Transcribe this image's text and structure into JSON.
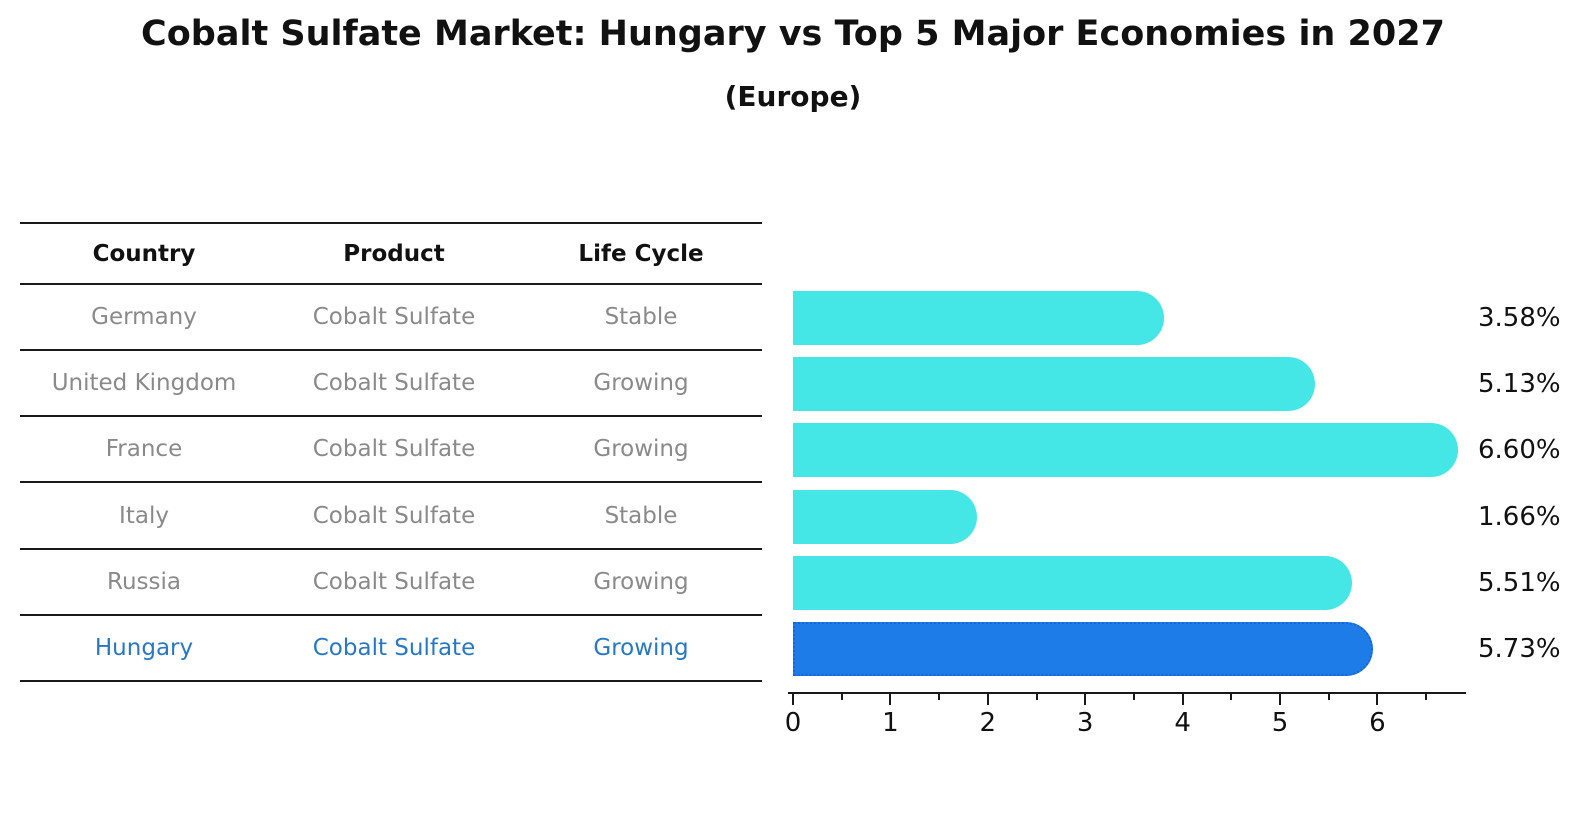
{
  "title": "Cobalt Sulfate Market: Hungary vs Top 5 Major Economies in 2027",
  "subtitle": "(Europe)",
  "table": {
    "headers": [
      "Country",
      "Product",
      "Life Cycle"
    ],
    "rows": [
      {
        "country": "Germany",
        "product": "Cobalt Sulfate",
        "life_cycle": "Stable",
        "highlight": false
      },
      {
        "country": "United Kingdom",
        "product": "Cobalt Sulfate",
        "life_cycle": "Growing",
        "highlight": false
      },
      {
        "country": "France",
        "product": "Cobalt Sulfate",
        "life_cycle": "Growing",
        "highlight": false
      },
      {
        "country": "Italy",
        "product": "Cobalt Sulfate",
        "life_cycle": "Stable",
        "highlight": false
      },
      {
        "country": "Russia",
        "product": "Cobalt Sulfate",
        "life_cycle": "Growing",
        "highlight": false
      },
      {
        "country": "Hungary",
        "product": "Cobalt Sulfate",
        "life_cycle": "Growing",
        "highlight": true
      }
    ]
  },
  "chart_data": {
    "type": "bar",
    "orientation": "horizontal",
    "title": "Cobalt Sulfate Market: Hungary vs Top 5 Major Economies in 2027 (Europe)",
    "categories": [
      "Germany",
      "United Kingdom",
      "France",
      "Italy",
      "Russia",
      "Hungary"
    ],
    "values": [
      3.58,
      5.13,
      6.6,
      1.66,
      5.51,
      5.73
    ],
    "value_labels": [
      "3.58%",
      "5.13%",
      "6.60%",
      "1.66%",
      "5.51%",
      "5.73%"
    ],
    "highlight_index": 5,
    "x_ticks": [
      0,
      1,
      2,
      3,
      4,
      5,
      6
    ],
    "minor_x_ticks": [
      0.5,
      1.5,
      2.5,
      3.5,
      4.5,
      5.5,
      6.5
    ],
    "xlim": [
      0,
      6.9
    ],
    "grid": false,
    "legend": "none",
    "colors": {
      "bar": "#45e6e6",
      "highlight_bar": "#1e7ce8",
      "highlight_bar_border": "#1668d8",
      "row_text": "#8a8a8a",
      "highlight_text": "#2878c8",
      "axis": "#1a1a1a",
      "label_text": "#111111"
    }
  }
}
